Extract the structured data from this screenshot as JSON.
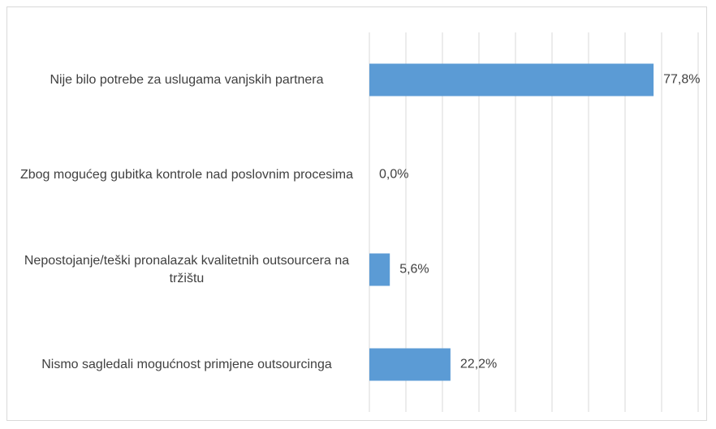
{
  "chart_data": {
    "type": "barh",
    "categories": [
      "Nije bilo potrebe za uslugama vanjskih partnera",
      "Zbog mogućeg gubitka kontrole nad poslovnim procesima",
      "Nepostojanje/teški pronalazak kvalitetnih outsourcera na tržištu",
      "Nismo sagledali mogućnost primjene outsourcinga"
    ],
    "values": [
      77.8,
      0,
      5.6,
      22.2
    ],
    "value_labels": [
      "77,8%",
      "0,0%",
      "5,6%",
      "22,2%"
    ],
    "color": "#5b9bd5",
    "xlim": [
      0,
      90
    ],
    "xticks": [
      0,
      10,
      20,
      30,
      40,
      50,
      60,
      70,
      80,
      90
    ],
    "grid": true
  }
}
